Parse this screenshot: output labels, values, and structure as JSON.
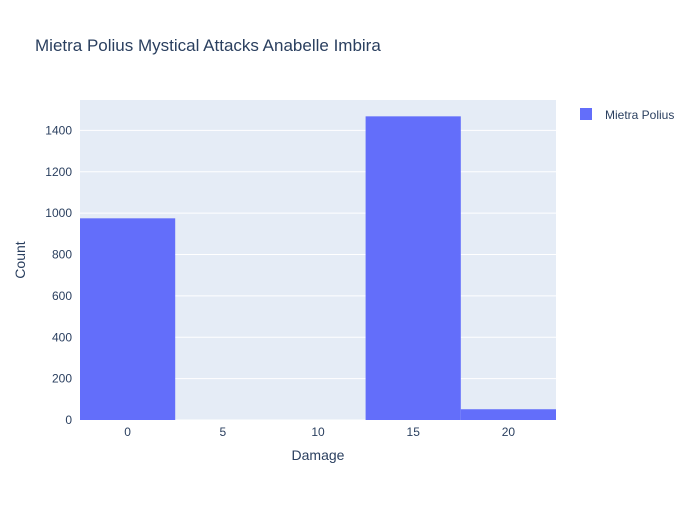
{
  "chart_data": {
    "type": "bar",
    "title": "Mietra Polius Mystical Attacks Anabelle Imbira",
    "xlabel": "Damage",
    "ylabel": "Count",
    "x_ticks": [
      0,
      5,
      10,
      15,
      20
    ],
    "y_ticks": [
      0,
      200,
      400,
      600,
      800,
      1000,
      1200,
      1400
    ],
    "xlim": [
      -2.5,
      22.5
    ],
    "ylim": [
      0,
      1547
    ],
    "bin_width": 5,
    "grid": true,
    "legend": {
      "position": "top-right",
      "entries": [
        "Mietra Polius"
      ]
    },
    "series": [
      {
        "name": "Mietra Polius",
        "color": "#636efa",
        "x": [
          0,
          5,
          10,
          15,
          20
        ],
        "values": [
          975,
          0,
          0,
          1468,
          52
        ]
      }
    ]
  }
}
